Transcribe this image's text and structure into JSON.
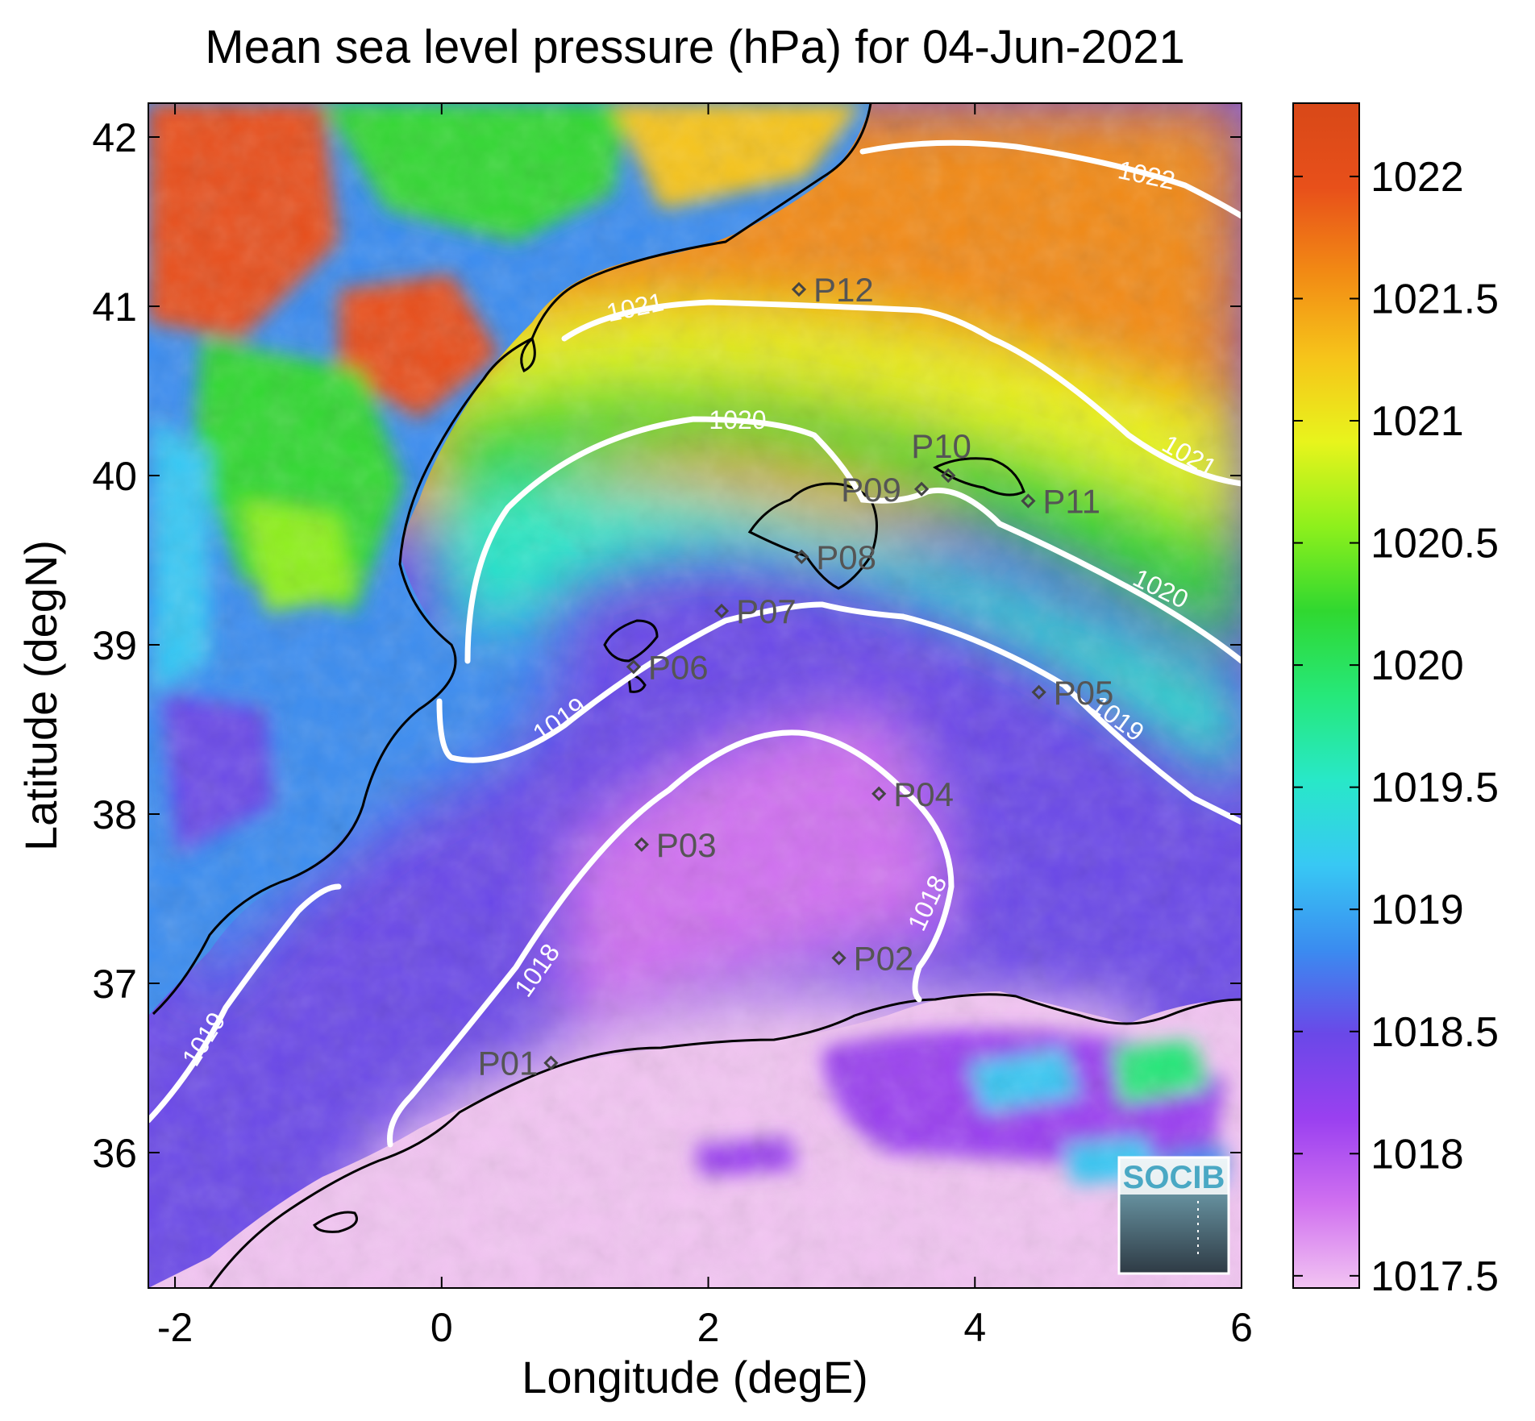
{
  "title": "Mean sea level pressure (hPa) for 04-Jun-2021",
  "xlabel": "Longitude (degE)",
  "ylabel": "Latitude (degN)",
  "map": {
    "xlim": [
      -2.2,
      6
    ],
    "ylim": [
      35.2,
      42.2
    ],
    "x_ticks": [
      "-2",
      "0",
      "2",
      "4",
      "6"
    ],
    "x_tick_values": [
      -2,
      0,
      2,
      4,
      6
    ],
    "y_ticks": [
      "36",
      "37",
      "38",
      "39",
      "40",
      "41",
      "42"
    ],
    "y_tick_values": [
      36,
      37,
      38,
      39,
      40,
      41,
      42
    ]
  },
  "colorbar": {
    "range": [
      1017.45,
      1022.3
    ],
    "ticks": [
      "1017.5",
      "1018",
      "1018.5",
      "1019",
      "1019.5",
      "1020",
      "1020.5",
      "1021",
      "1021.5",
      "1022"
    ],
    "tick_values": [
      1017.5,
      1018,
      1018.5,
      1019,
      1019.5,
      1020,
      1020.5,
      1021,
      1021.5,
      1022
    ],
    "colors": [
      "#f2c4f2",
      "#d070f0",
      "#9a40f0",
      "#6a48e8",
      "#3a8cf0",
      "#38c8f4",
      "#28e8c8",
      "#26e87a",
      "#30d830",
      "#8ef01c",
      "#e8f41c",
      "#f6c41a",
      "#f28a14",
      "#e8501a",
      "#d84818"
    ]
  },
  "contour_labels": [
    "1022",
    "1021",
    "1021",
    "1020",
    "1020",
    "1019",
    "1019",
    "1019",
    "1018",
    "1018"
  ],
  "points": [
    {
      "label": "P01",
      "lon": 0.82,
      "lat": 36.53
    },
    {
      "label": "P02",
      "lon": 2.98,
      "lat": 37.15
    },
    {
      "label": "P03",
      "lon": 1.5,
      "lat": 37.82
    },
    {
      "label": "P04",
      "lon": 3.28,
      "lat": 38.12
    },
    {
      "label": "P05",
      "lon": 4.48,
      "lat": 38.72
    },
    {
      "label": "P06",
      "lon": 1.44,
      "lat": 38.87
    },
    {
      "label": "P07",
      "lon": 2.1,
      "lat": 39.2
    },
    {
      "label": "P08",
      "lon": 2.7,
      "lat": 39.52
    },
    {
      "label": "P09",
      "lon": 3.6,
      "lat": 39.92
    },
    {
      "label": "P10",
      "lon": 3.8,
      "lat": 40.0
    },
    {
      "label": "P11",
      "lon": 4.4,
      "lat": 39.85
    },
    {
      "label": "P12",
      "lon": 2.68,
      "lat": 41.1
    }
  ],
  "logo": {
    "text": "SOCIB"
  }
}
